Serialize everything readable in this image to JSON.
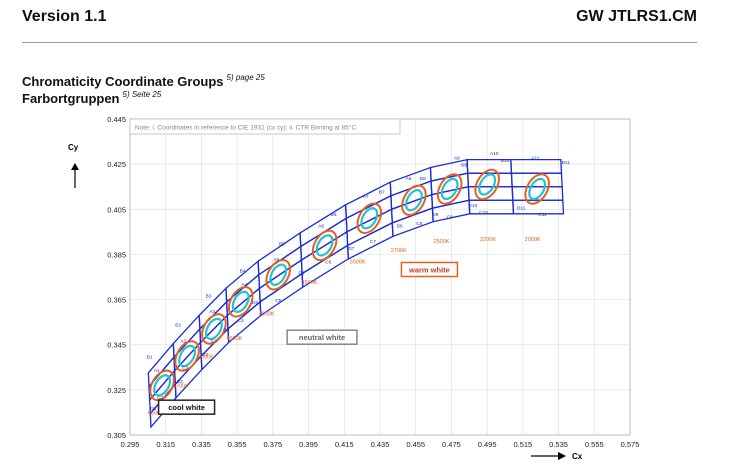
{
  "header": {
    "left": "Version 1.1",
    "right": "GW JTLRS1.CM"
  },
  "titles": {
    "line1": "Chromaticity Coordinate Groups",
    "line1_ref": "5) page 25",
    "line2": "Farbortgruppen",
    "line2_ref": "5) Seite 25"
  },
  "chart_data": {
    "type": "scatter",
    "note": "Note: i. Coordinates in reference to CIE 1931 (cx cy); ii. CTR Binning at 85°C",
    "xlabel": "Cx",
    "ylabel": "Cy",
    "xlim": [
      0.295,
      0.575
    ],
    "ylim": [
      0.305,
      0.445
    ],
    "xticks": [
      "0.295",
      "0.315",
      "0.335",
      "0.355",
      "0.375",
      "0.395",
      "0.415",
      "0.435",
      "0.455",
      "0.475",
      "0.495",
      "0.515",
      "0.535",
      "0.555",
      "0.575"
    ],
    "yticks": [
      "0.445",
      "0.425",
      "0.405",
      "0.385",
      "0.365",
      "0.345",
      "0.325",
      "0.305"
    ],
    "grid": true,
    "colors": {
      "bins": "#1b2bd6",
      "outer_ellipse": "#e8611a",
      "inner_ellipse": "#22c2d6",
      "region_box": "#333333",
      "warm_box": "#e8611a",
      "neutral_box": "#888888"
    },
    "cct_labels": [
      {
        "text": "6500K",
        "x": 0.305,
        "y": 0.314
      },
      {
        "text": "5700K",
        "x": 0.319,
        "y": 0.326
      },
      {
        "text": "5000K",
        "x": 0.333,
        "y": 0.339
      },
      {
        "text": "4500K",
        "x": 0.349,
        "y": 0.347
      },
      {
        "text": "4000K",
        "x": 0.367,
        "y": 0.358
      },
      {
        "text": "3500K",
        "x": 0.391,
        "y": 0.372
      },
      {
        "text": "3000K",
        "x": 0.418,
        "y": 0.381
      },
      {
        "text": "2700K",
        "x": 0.441,
        "y": 0.386
      },
      {
        "text": "2500K",
        "x": 0.465,
        "y": 0.39
      },
      {
        "text": "2200K",
        "x": 0.491,
        "y": 0.391
      },
      {
        "text": "2000K",
        "x": 0.516,
        "y": 0.391
      }
    ],
    "region_labels": [
      {
        "text": "cool white",
        "x": 0.311,
        "y": 0.316
      },
      {
        "text": "neutral white",
        "x": 0.383,
        "y": 0.347
      },
      {
        "text": "warm white",
        "x": 0.447,
        "y": 0.377
      }
    ],
    "bin_labels": [
      {
        "text": "B1",
        "x": 0.306,
        "y": 0.339
      },
      {
        "text": "B2",
        "x": 0.322,
        "y": 0.353
      },
      {
        "text": "B3",
        "x": 0.339,
        "y": 0.366
      },
      {
        "text": "B4",
        "x": 0.358,
        "y": 0.377
      },
      {
        "text": "B5",
        "x": 0.38,
        "y": 0.389
      },
      {
        "text": "B6",
        "x": 0.409,
        "y": 0.402
      },
      {
        "text": "B7",
        "x": 0.436,
        "y": 0.412
      },
      {
        "text": "B8",
        "x": 0.459,
        "y": 0.418
      },
      {
        "text": "B9",
        "x": 0.482,
        "y": 0.424
      },
      {
        "text": "B10",
        "x": 0.505,
        "y": 0.426
      },
      {
        "text": "B11",
        "x": 0.539,
        "y": 0.425
      },
      {
        "text": "A1",
        "x": 0.31,
        "y": 0.333
      },
      {
        "text": "A2",
        "x": 0.325,
        "y": 0.346
      },
      {
        "text": "A3",
        "x": 0.341,
        "y": 0.359
      },
      {
        "text": "A4",
        "x": 0.359,
        "y": 0.371
      },
      {
        "text": "A5",
        "x": 0.377,
        "y": 0.382
      },
      {
        "text": "A6",
        "x": 0.402,
        "y": 0.397
      },
      {
        "text": "A7",
        "x": 0.427,
        "y": 0.41
      },
      {
        "text": "A8",
        "x": 0.451,
        "y": 0.418
      },
      {
        "text": "A9",
        "x": 0.478,
        "y": 0.427
      },
      {
        "text": "A10",
        "x": 0.499,
        "y": 0.429
      },
      {
        "text": "A11",
        "x": 0.522,
        "y": 0.427
      },
      {
        "text": "C1",
        "x": 0.312,
        "y": 0.321
      },
      {
        "text": "C2",
        "x": 0.326,
        "y": 0.334
      },
      {
        "text": "C3",
        "x": 0.342,
        "y": 0.346
      },
      {
        "text": "C4",
        "x": 0.357,
        "y": 0.355
      },
      {
        "text": "C5",
        "x": 0.378,
        "y": 0.364
      },
      {
        "text": "C6",
        "x": 0.406,
        "y": 0.381
      },
      {
        "text": "C7",
        "x": 0.431,
        "y": 0.39
      },
      {
        "text": "C8",
        "x": 0.457,
        "y": 0.398
      },
      {
        "text": "C9",
        "x": 0.474,
        "y": 0.401
      },
      {
        "text": "C10",
        "x": 0.493,
        "y": 0.403
      },
      {
        "text": "C11",
        "x": 0.526,
        "y": 0.402
      },
      {
        "text": "D1",
        "x": 0.308,
        "y": 0.316
      },
      {
        "text": "D2",
        "x": 0.323,
        "y": 0.328
      },
      {
        "text": "D3",
        "x": 0.337,
        "y": 0.34
      },
      {
        "text": "D4",
        "x": 0.349,
        "y": 0.351
      },
      {
        "text": "D5",
        "x": 0.365,
        "y": 0.363
      },
      {
        "text": "D6",
        "x": 0.391,
        "y": 0.376
      },
      {
        "text": "D7",
        "x": 0.419,
        "y": 0.387
      },
      {
        "text": "D8",
        "x": 0.446,
        "y": 0.397
      },
      {
        "text": "D9",
        "x": 0.466,
        "y": 0.402
      },
      {
        "text": "D10",
        "x": 0.487,
        "y": 0.406
      },
      {
        "text": "D11",
        "x": 0.514,
        "y": 0.405
      }
    ],
    "ellipses": [
      {
        "cx": 0.313,
        "cy": 0.327
      },
      {
        "cx": 0.327,
        "cy": 0.34
      },
      {
        "cx": 0.342,
        "cy": 0.352
      },
      {
        "cx": 0.357,
        "cy": 0.364
      },
      {
        "cx": 0.378,
        "cy": 0.376
      },
      {
        "cx": 0.404,
        "cy": 0.389
      },
      {
        "cx": 0.429,
        "cy": 0.401
      },
      {
        "cx": 0.454,
        "cy": 0.409
      },
      {
        "cx": 0.474,
        "cy": 0.414
      },
      {
        "cx": 0.495,
        "cy": 0.416
      },
      {
        "cx": 0.523,
        "cy": 0.414
      }
    ]
  }
}
